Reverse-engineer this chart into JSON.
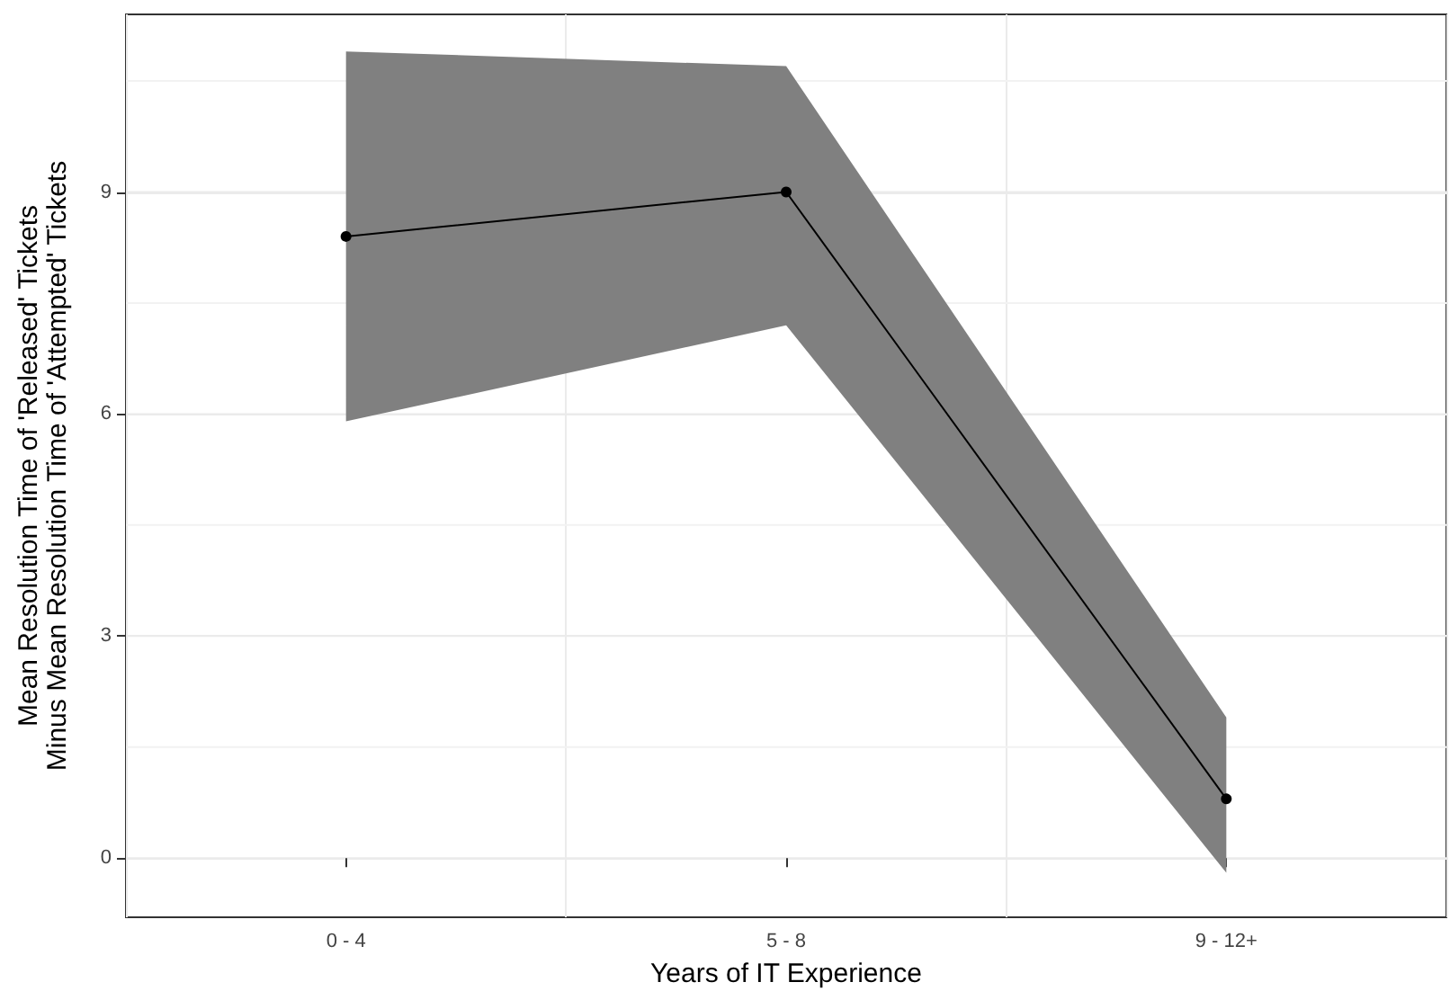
{
  "chart_data": {
    "type": "line",
    "xlabel": "Years of IT Experience",
    "ylabel": "Mean Resolution Time of 'Released' Tickets\nMinus Mean Resolution Time of 'Attempted' Tickets",
    "categories": [
      "0 - 4",
      "5 - 8",
      "9 - 12+"
    ],
    "series": [
      {
        "color": "#000000",
        "values": [
          8.4,
          9.0,
          0.8
        ],
        "lower": [
          5.9,
          7.2,
          -0.2
        ],
        "upper": [
          10.9,
          10.7,
          1.9
        ]
      }
    ],
    "ylim": [
      -0.8,
      11.4
    ],
    "yticks": [
      0,
      {
        "value": 1.5,
        "label": null
      },
      3,
      {
        "value": 4.5,
        "label": null
      },
      6,
      {
        "value": 7.5,
        "label": null
      },
      9,
      {
        "value": 10.5,
        "label": null
      }
    ],
    "grid": true,
    "marker": "circle",
    "line_style": "solid"
  }
}
